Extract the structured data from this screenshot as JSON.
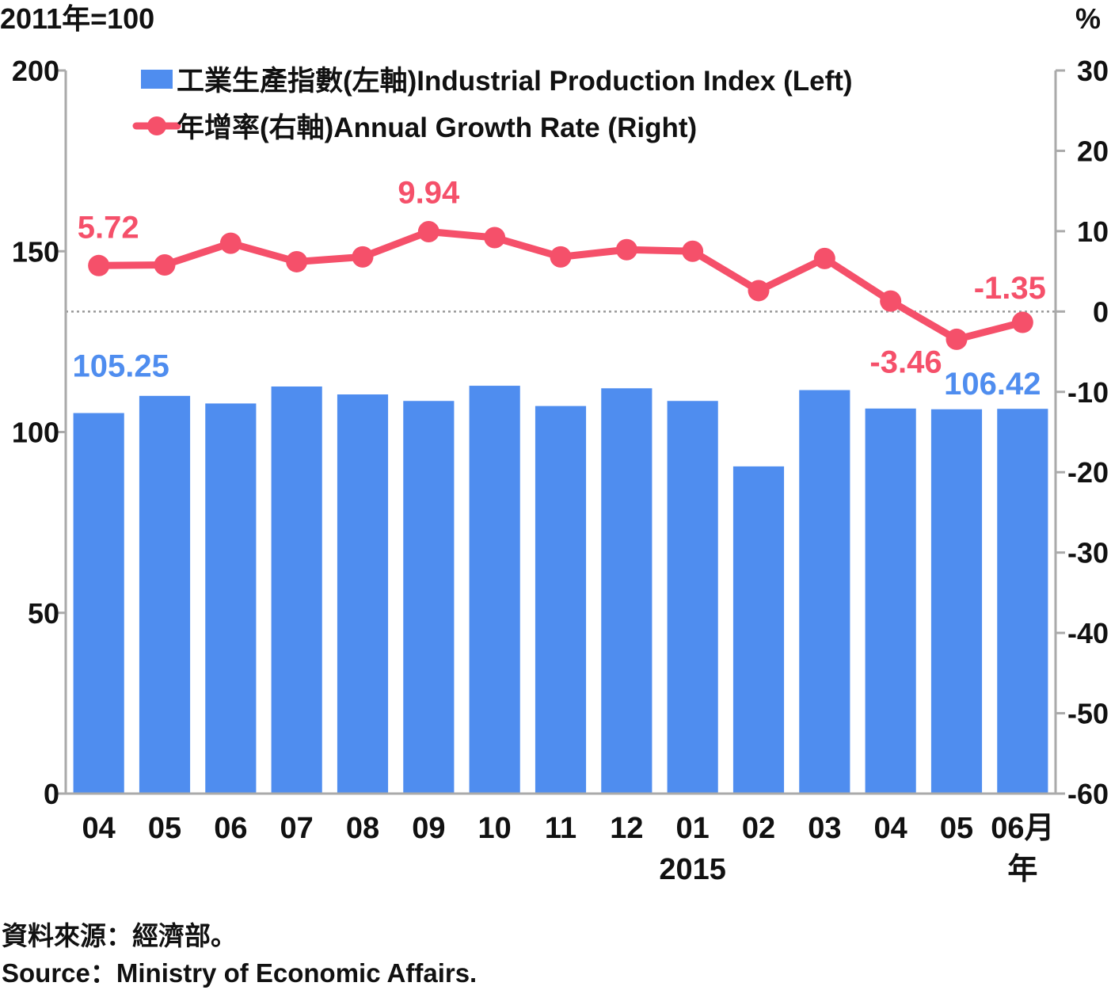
{
  "chart_data": {
    "type": "bar+line",
    "left_unit": "2011年=100",
    "right_unit": "%",
    "categories": [
      "04",
      "05",
      "06",
      "07",
      "08",
      "09",
      "10",
      "11",
      "12",
      "01",
      "02",
      "03",
      "04",
      "05",
      "06月"
    ],
    "year_label": "2015",
    "year_suffix": "年",
    "series": [
      {
        "name": "工業生產指數(左軸)Industrial Production Index (Left)",
        "type": "bar",
        "axis": "left",
        "color": "#4f8def",
        "values": [
          105.25,
          110.0,
          107.9,
          112.6,
          110.4,
          108.6,
          112.8,
          107.2,
          112.1,
          108.6,
          90.5,
          111.6,
          106.5,
          106.3,
          106.42
        ]
      },
      {
        "name": "年增率(右軸)Annual Growth Rate (Right)",
        "type": "line",
        "axis": "right",
        "color": "#f5506a",
        "values": [
          5.72,
          5.8,
          8.5,
          6.2,
          6.8,
          9.94,
          9.2,
          6.8,
          7.7,
          7.5,
          2.6,
          6.6,
          1.3,
          -3.46,
          -1.35
        ]
      }
    ],
    "left_axis": {
      "min": 0,
      "max": 200,
      "ticks": [
        "0",
        "50",
        "100",
        "150",
        "200"
      ]
    },
    "right_axis": {
      "min": -60,
      "max": 30,
      "ticks": [
        "-60",
        "-50",
        "-40",
        "-30",
        "-20",
        "-10",
        "0",
        "10",
        "20",
        "30"
      ]
    },
    "reference_line": {
      "axis": "right",
      "value": 0,
      "style": "dotted"
    },
    "bar_labels": [
      {
        "index": 0,
        "text": "105.25"
      },
      {
        "index": 14,
        "text": "106.42"
      }
    ],
    "line_labels": [
      {
        "index": 0,
        "text": "5.72"
      },
      {
        "index": 5,
        "text": "9.94"
      },
      {
        "index": 13,
        "text": "-3.46"
      },
      {
        "index": 14,
        "text": "-1.35"
      }
    ],
    "legend_position": "top-left"
  },
  "source": {
    "zh": "資料來源：經濟部。",
    "en": "Source：Ministry of Economic Affairs."
  }
}
